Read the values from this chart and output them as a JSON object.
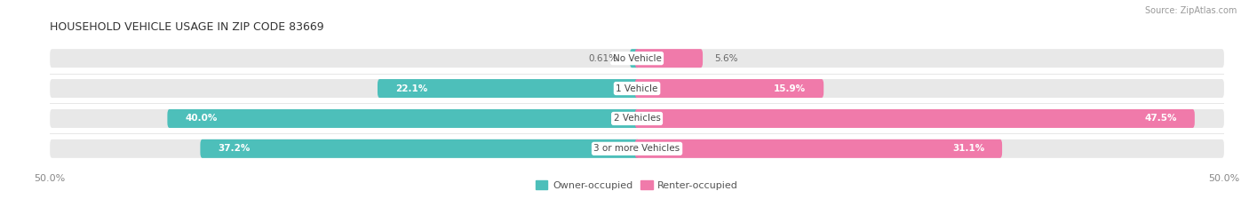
{
  "title": "HOUSEHOLD VEHICLE USAGE IN ZIP CODE 83669",
  "source": "Source: ZipAtlas.com",
  "categories": [
    "No Vehicle",
    "1 Vehicle",
    "2 Vehicles",
    "3 or more Vehicles"
  ],
  "owner_values": [
    0.61,
    22.1,
    40.0,
    37.2
  ],
  "renter_values": [
    5.6,
    15.9,
    47.5,
    31.1
  ],
  "owner_color": "#4dbfba",
  "renter_color": "#f07aaa",
  "bar_bg_color": "#e8e8e8",
  "fig_bg_color": "#ffffff",
  "xlim": 50.0,
  "bar_height": 0.62,
  "fig_width": 14.06,
  "fig_height": 2.33,
  "dpi": 100,
  "title_fontsize": 9,
  "source_fontsize": 7,
  "axis_fontsize": 8,
  "label_fontsize": 7.5,
  "value_fontsize": 7.5,
  "owner_label_threshold": 8,
  "renter_label_threshold": 8,
  "legend_owner": "Owner-occupied",
  "legend_renter": "Renter-occupied"
}
